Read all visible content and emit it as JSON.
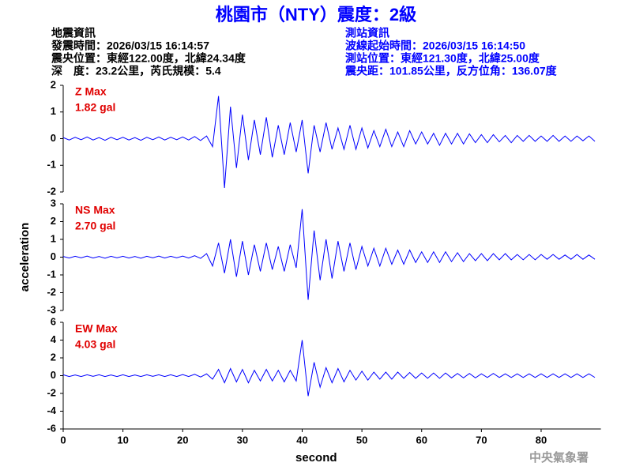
{
  "header": {
    "title": "桃園市（NTY）震度：2級",
    "left": [
      "地震資訊",
      "發震時間：2026/03/15 16:14:57",
      "震央位置：東經122.00度，北緯24.34度",
      "深　度：23.2公里，芮氏規模：5.4"
    ],
    "right": [
      "測站資訊",
      "波線起始時間：2026/03/15 16:14:50",
      "測站位置：東經121.30度，北緯25.00度",
      "震央距：101.85公里，反方位角：136.07度"
    ]
  },
  "footer": "中央氣象署",
  "chart_data": [
    {
      "type": "line",
      "annotations": [
        "Z Max",
        "1.82 gal"
      ],
      "color": "#0000ff",
      "ylim": [
        -2,
        2
      ],
      "yticks": [
        -2,
        -1,
        0,
        1,
        2
      ],
      "xlim": [
        0,
        90
      ],
      "x": [
        0,
        1,
        2,
        3,
        4,
        5,
        6,
        7,
        8,
        9,
        10,
        11,
        12,
        13,
        14,
        15,
        16,
        17,
        18,
        19,
        20,
        21,
        22,
        23,
        24,
        25,
        26,
        27,
        28,
        29,
        30,
        31,
        32,
        33,
        34,
        35,
        36,
        37,
        38,
        39,
        40,
        41,
        42,
        43,
        44,
        45,
        46,
        47,
        48,
        49,
        50,
        51,
        52,
        53,
        54,
        55,
        56,
        57,
        58,
        59,
        60,
        61,
        62,
        63,
        64,
        65,
        66,
        67,
        68,
        69,
        70,
        71,
        72,
        73,
        74,
        75,
        76,
        77,
        78,
        79,
        80,
        81,
        82,
        83,
        84,
        85,
        86,
        87,
        88,
        89
      ],
      "values": [
        0.04,
        -0.05,
        0.05,
        -0.04,
        0.06,
        -0.05,
        0.04,
        -0.06,
        0.05,
        -0.04,
        0.05,
        -0.05,
        0.04,
        -0.06,
        0.05,
        -0.04,
        0.06,
        -0.05,
        0.05,
        -0.04,
        0.06,
        -0.05,
        0.08,
        -0.07,
        0.1,
        -0.3,
        1.6,
        -1.85,
        1.2,
        -1.1,
        0.9,
        -0.8,
        0.7,
        -0.6,
        0.8,
        -0.7,
        0.5,
        -0.6,
        0.6,
        -0.5,
        0.7,
        -1.3,
        0.5,
        -0.5,
        0.6,
        -0.4,
        0.4,
        -0.4,
        0.5,
        -0.4,
        0.4,
        -0.35,
        0.3,
        -0.3,
        0.35,
        -0.3,
        0.25,
        -0.3,
        0.3,
        -0.2,
        0.25,
        -0.2,
        0.2,
        -0.25,
        0.2,
        -0.2,
        0.2,
        -0.2,
        0.18,
        -0.15,
        0.15,
        -0.15,
        0.15,
        -0.12,
        0.12,
        -0.15,
        0.12,
        -0.1,
        0.12,
        -0.1,
        0.1,
        -0.1,
        0.12,
        -0.1,
        0.1,
        -0.1,
        0.1,
        -0.08,
        0.1,
        -0.1
      ]
    },
    {
      "type": "line",
      "annotations": [
        "NS Max",
        "2.70 gal"
      ],
      "y_label": "acceleration",
      "color": "#0000ff",
      "ylim": [
        -3,
        3
      ],
      "yticks": [
        -3,
        -2,
        -1,
        0,
        1,
        2,
        3
      ],
      "xlim": [
        0,
        90
      ],
      "x": [
        0,
        1,
        2,
        3,
        4,
        5,
        6,
        7,
        8,
        9,
        10,
        11,
        12,
        13,
        14,
        15,
        16,
        17,
        18,
        19,
        20,
        21,
        22,
        23,
        24,
        25,
        26,
        27,
        28,
        29,
        30,
        31,
        32,
        33,
        34,
        35,
        36,
        37,
        38,
        39,
        40,
        41,
        42,
        43,
        44,
        45,
        46,
        47,
        48,
        49,
        50,
        51,
        52,
        53,
        54,
        55,
        56,
        57,
        58,
        59,
        60,
        61,
        62,
        63,
        64,
        65,
        66,
        67,
        68,
        69,
        70,
        71,
        72,
        73,
        74,
        75,
        76,
        77,
        78,
        79,
        80,
        81,
        82,
        83,
        84,
        85,
        86,
        87,
        88,
        89
      ],
      "values": [
        0.04,
        -0.05,
        0.05,
        -0.04,
        0.06,
        -0.05,
        0.04,
        -0.06,
        0.05,
        -0.04,
        0.05,
        -0.05,
        0.04,
        -0.06,
        0.05,
        -0.04,
        0.06,
        -0.05,
        0.05,
        -0.04,
        0.06,
        -0.05,
        0.08,
        -0.07,
        0.2,
        -0.5,
        0.8,
        -0.9,
        1.0,
        -1.1,
        0.9,
        -1.0,
        0.7,
        -0.8,
        0.8,
        -0.7,
        0.6,
        -0.8,
        0.7,
        -0.6,
        2.7,
        -2.4,
        1.5,
        -1.3,
        1.0,
        -1.2,
        0.9,
        -0.8,
        0.8,
        -0.7,
        0.6,
        -0.5,
        0.5,
        -0.5,
        0.5,
        -0.4,
        0.4,
        -0.4,
        0.4,
        -0.3,
        0.3,
        -0.3,
        0.3,
        -0.3,
        0.3,
        -0.25,
        0.25,
        -0.25,
        0.2,
        -0.2,
        0.2,
        -0.2,
        0.2,
        -0.15,
        0.2,
        -0.15,
        0.15,
        -0.15,
        0.15,
        -0.15,
        0.15,
        -0.12,
        0.15,
        -0.12,
        0.12,
        -0.12,
        0.15,
        -0.12,
        0.12,
        -0.12
      ]
    },
    {
      "type": "line",
      "annotations": [
        "EW Max",
        "4.03 gal"
      ],
      "x_label": "second",
      "color": "#0000ff",
      "ylim": [
        -6,
        6
      ],
      "yticks": [
        -6,
        -4,
        -2,
        0,
        2,
        4,
        6
      ],
      "xlim": [
        0,
        90
      ],
      "xticks": [
        0,
        10,
        20,
        30,
        40,
        50,
        60,
        70,
        80
      ],
      "x": [
        0,
        1,
        2,
        3,
        4,
        5,
        6,
        7,
        8,
        9,
        10,
        11,
        12,
        13,
        14,
        15,
        16,
        17,
        18,
        19,
        20,
        21,
        22,
        23,
        24,
        25,
        26,
        27,
        28,
        29,
        30,
        31,
        32,
        33,
        34,
        35,
        36,
        37,
        38,
        39,
        40,
        41,
        42,
        43,
        44,
        45,
        46,
        47,
        48,
        49,
        50,
        51,
        52,
        53,
        54,
        55,
        56,
        57,
        58,
        59,
        60,
        61,
        62,
        63,
        64,
        65,
        66,
        67,
        68,
        69,
        70,
        71,
        72,
        73,
        74,
        75,
        76,
        77,
        78,
        79,
        80,
        81,
        82,
        83,
        84,
        85,
        86,
        87,
        88,
        89
      ],
      "values": [
        0.1,
        -0.1,
        0.08,
        -0.1,
        0.1,
        -0.08,
        0.1,
        -0.1,
        0.08,
        -0.1,
        0.1,
        -0.1,
        0.08,
        -0.1,
        0.1,
        -0.08,
        0.1,
        -0.1,
        0.1,
        -0.1,
        0.12,
        -0.1,
        0.15,
        -0.15,
        0.2,
        -0.4,
        0.7,
        -0.8,
        0.8,
        -0.7,
        0.7,
        -0.8,
        0.6,
        -0.6,
        0.7,
        -0.6,
        0.6,
        -0.7,
        0.6,
        -0.6,
        4.0,
        -2.3,
        1.5,
        -1.3,
        0.9,
        -0.8,
        0.8,
        -0.7,
        0.6,
        -0.5,
        0.5,
        -0.5,
        0.4,
        -0.4,
        0.4,
        -0.4,
        0.4,
        -0.3,
        0.35,
        -0.3,
        0.3,
        -0.3,
        0.3,
        -0.3,
        0.3,
        -0.25,
        0.25,
        -0.25,
        0.25,
        -0.25,
        0.2,
        -0.2,
        0.25,
        -0.2,
        0.2,
        -0.2,
        0.2,
        -0.2,
        0.2,
        -0.2,
        0.2,
        -0.2,
        0.2,
        -0.2,
        0.2,
        -0.2,
        0.2,
        -0.2,
        0.2,
        -0.2
      ]
    }
  ]
}
